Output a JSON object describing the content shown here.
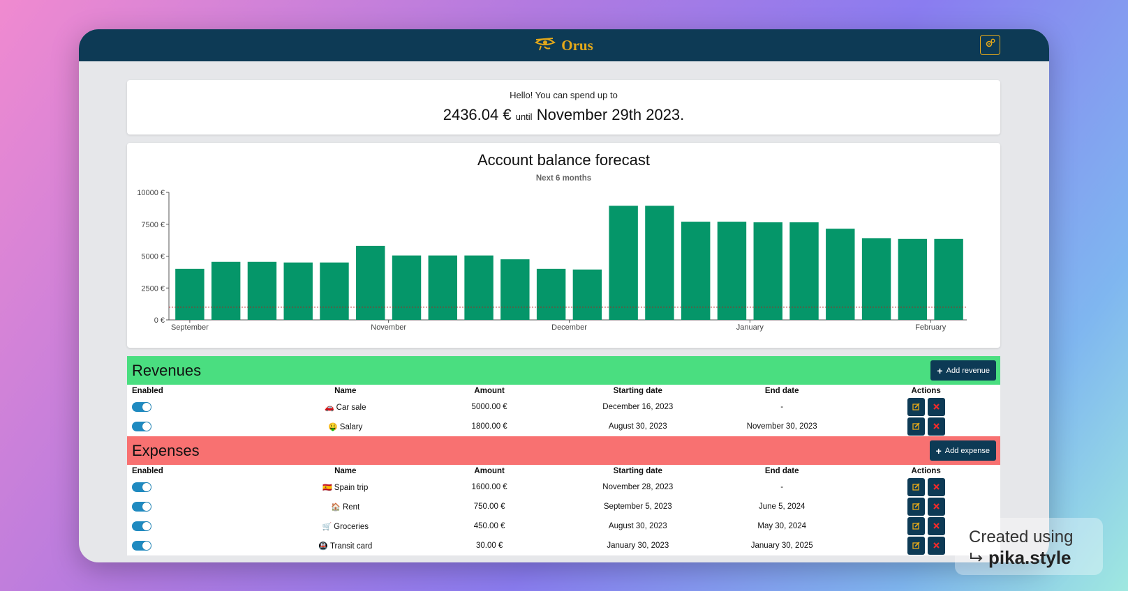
{
  "app": {
    "brand_name": "Orus"
  },
  "summary": {
    "hello": "Hello! You can spend up to",
    "amount": "2436.04 €",
    "until": "until",
    "date": "November 29th 2023."
  },
  "chart_data": {
    "type": "bar",
    "title": "Account balance forecast",
    "subtitle": "Next 6 months",
    "y_ticks": [
      "0 €",
      "2500 €",
      "5000 €",
      "7500 €",
      "10000 €"
    ],
    "ylim": [
      0,
      10000
    ],
    "x_tick_labels": [
      "September",
      "November",
      "December",
      "January",
      "February"
    ],
    "x_tick_positions": [
      0,
      5.5,
      10.5,
      15.5,
      20.5
    ],
    "values": [
      4000,
      4550,
      4550,
      4500,
      4500,
      5800,
      5050,
      5050,
      5050,
      4750,
      4000,
      3950,
      8950,
      8950,
      7700,
      7700,
      7650,
      7650,
      7150,
      6400,
      6350,
      6350
    ],
    "threshold": 1000,
    "bar_color": "#059669",
    "threshold_color": "#b91c1c"
  },
  "revenues": {
    "title": "Revenues",
    "add_label": "Add revenue",
    "headers": [
      "Enabled",
      "Name",
      "Amount",
      "Starting date",
      "End date",
      "Actions"
    ],
    "rows": [
      {
        "emoji": "🚗",
        "name": "Car sale",
        "amount": "5000.00 €",
        "start": "December 16, 2023",
        "end": "-"
      },
      {
        "emoji": "🤑",
        "name": "Salary",
        "amount": "1800.00 €",
        "start": "August 30, 2023",
        "end": "November 30, 2023"
      }
    ]
  },
  "expenses": {
    "title": "Expenses",
    "add_label": "Add expense",
    "headers": [
      "Enabled",
      "Name",
      "Amount",
      "Starting date",
      "End date",
      "Actions"
    ],
    "rows": [
      {
        "emoji": "🇪🇸",
        "name": "Spain trip",
        "amount": "1600.00 €",
        "start": "November 28, 2023",
        "end": "-"
      },
      {
        "emoji": "🏠",
        "name": "Rent",
        "amount": "750.00 €",
        "start": "September 5, 2023",
        "end": "June 5, 2024"
      },
      {
        "emoji": "🛒",
        "name": "Groceries",
        "amount": "450.00 €",
        "start": "August 30, 2023",
        "end": "May 30, 2024"
      },
      {
        "emoji": "🚇",
        "name": "Transit card",
        "amount": "30.00 €",
        "start": "January 30, 2023",
        "end": "January 30, 2025"
      }
    ]
  },
  "watermark": {
    "line1": "Created using",
    "line2": "pika.style"
  },
  "icons": {
    "logo": "eye-of-horus-icon",
    "settings": "gears-icon",
    "add": "plus-icon",
    "edit": "edit-icon",
    "delete": "delete-icon"
  },
  "colors": {
    "navbar": "#0d3a55",
    "accent": "#e5a91a",
    "revenues": "#4ade80",
    "expenses": "#f87171",
    "toggle": "#1f8ac0"
  }
}
